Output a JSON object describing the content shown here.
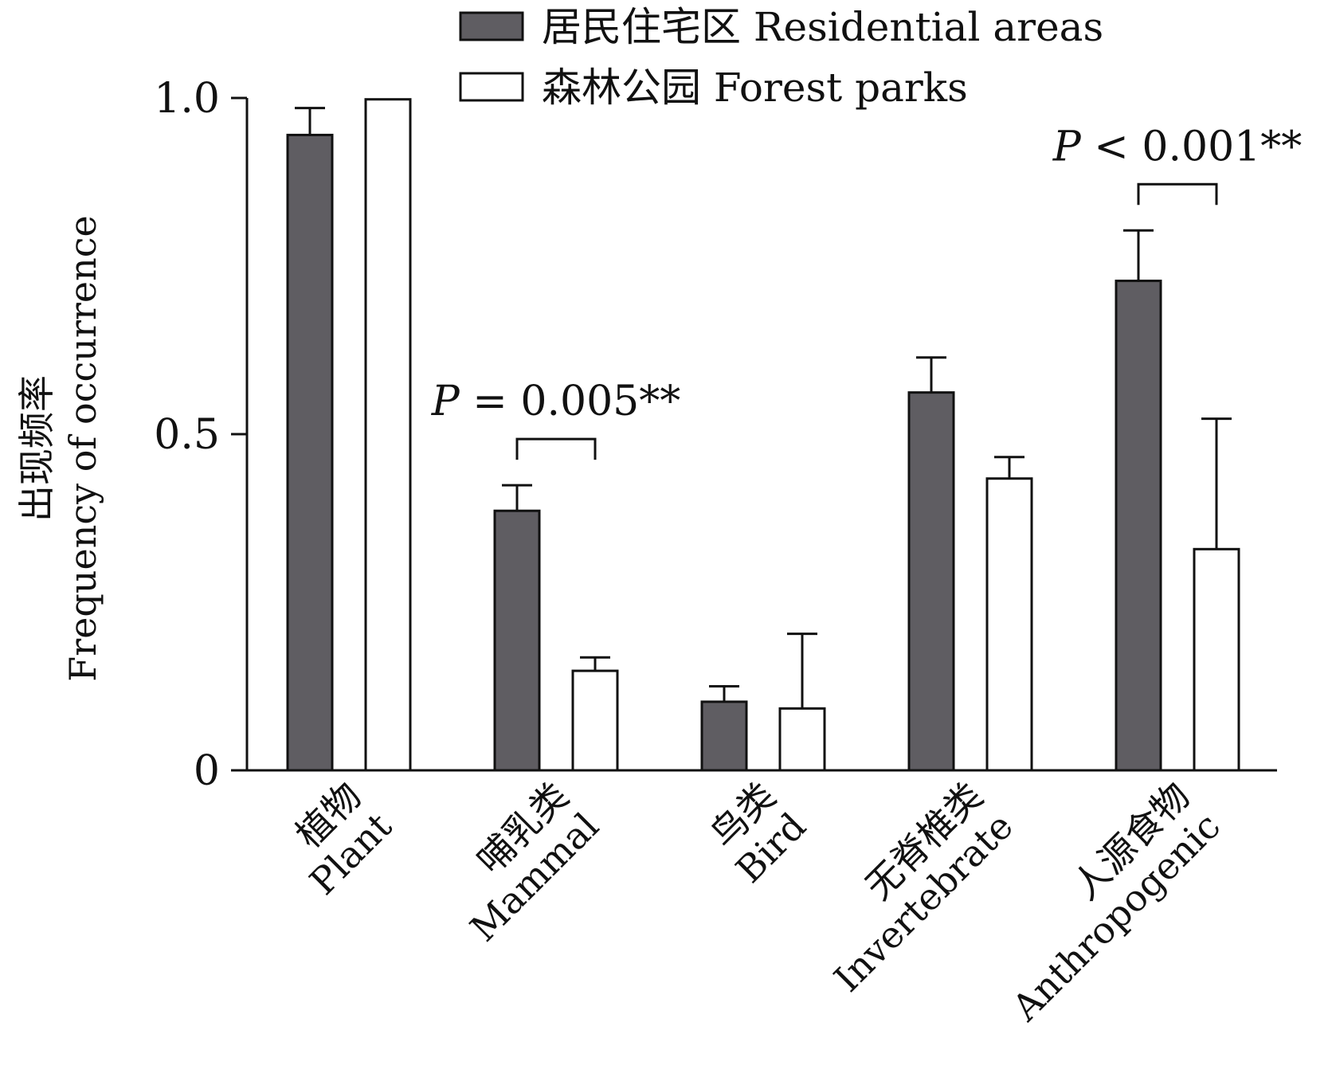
{
  "chart_data": {
    "type": "bar",
    "ylabel_cn": "出现频率",
    "ylabel_en": "Frequency of occurrence",
    "ylim": [
      0,
      1.0
    ],
    "yticks": [
      {
        "value": 0,
        "label": "0"
      },
      {
        "value": 0.5,
        "label": "0.5"
      },
      {
        "value": 1.0,
        "label": "1.0"
      }
    ],
    "categories": [
      {
        "cn": "植物",
        "en": "Plant"
      },
      {
        "cn": "哺乳类",
        "en": "Mammal"
      },
      {
        "cn": "鸟类",
        "en": "Bird"
      },
      {
        "cn": "无脊椎类",
        "en": "Invertebrate"
      },
      {
        "cn": "人源食物",
        "en": "Anthropogenic"
      }
    ],
    "series": [
      {
        "name": "居民住宅区 Residential areas",
        "color": "#5f5d62",
        "values": [
          0.945,
          0.386,
          0.102,
          0.562,
          0.728
        ],
        "errors": [
          0.04,
          0.038,
          0.023,
          0.052,
          0.075
        ]
      },
      {
        "name": "森林公园 Forest parks",
        "color": "#ffffff",
        "values": [
          0.998,
          0.148,
          0.092,
          0.434,
          0.329
        ],
        "errors": [
          0.0,
          0.02,
          0.111,
          0.032,
          0.194
        ]
      }
    ],
    "annotations": [
      {
        "category_index": 1,
        "p_prefix": "P",
        "text": " = 0.005**"
      },
      {
        "category_index": 4,
        "p_prefix": "P",
        "text": " < 0.001**"
      }
    ],
    "legend_position": "top-center"
  }
}
